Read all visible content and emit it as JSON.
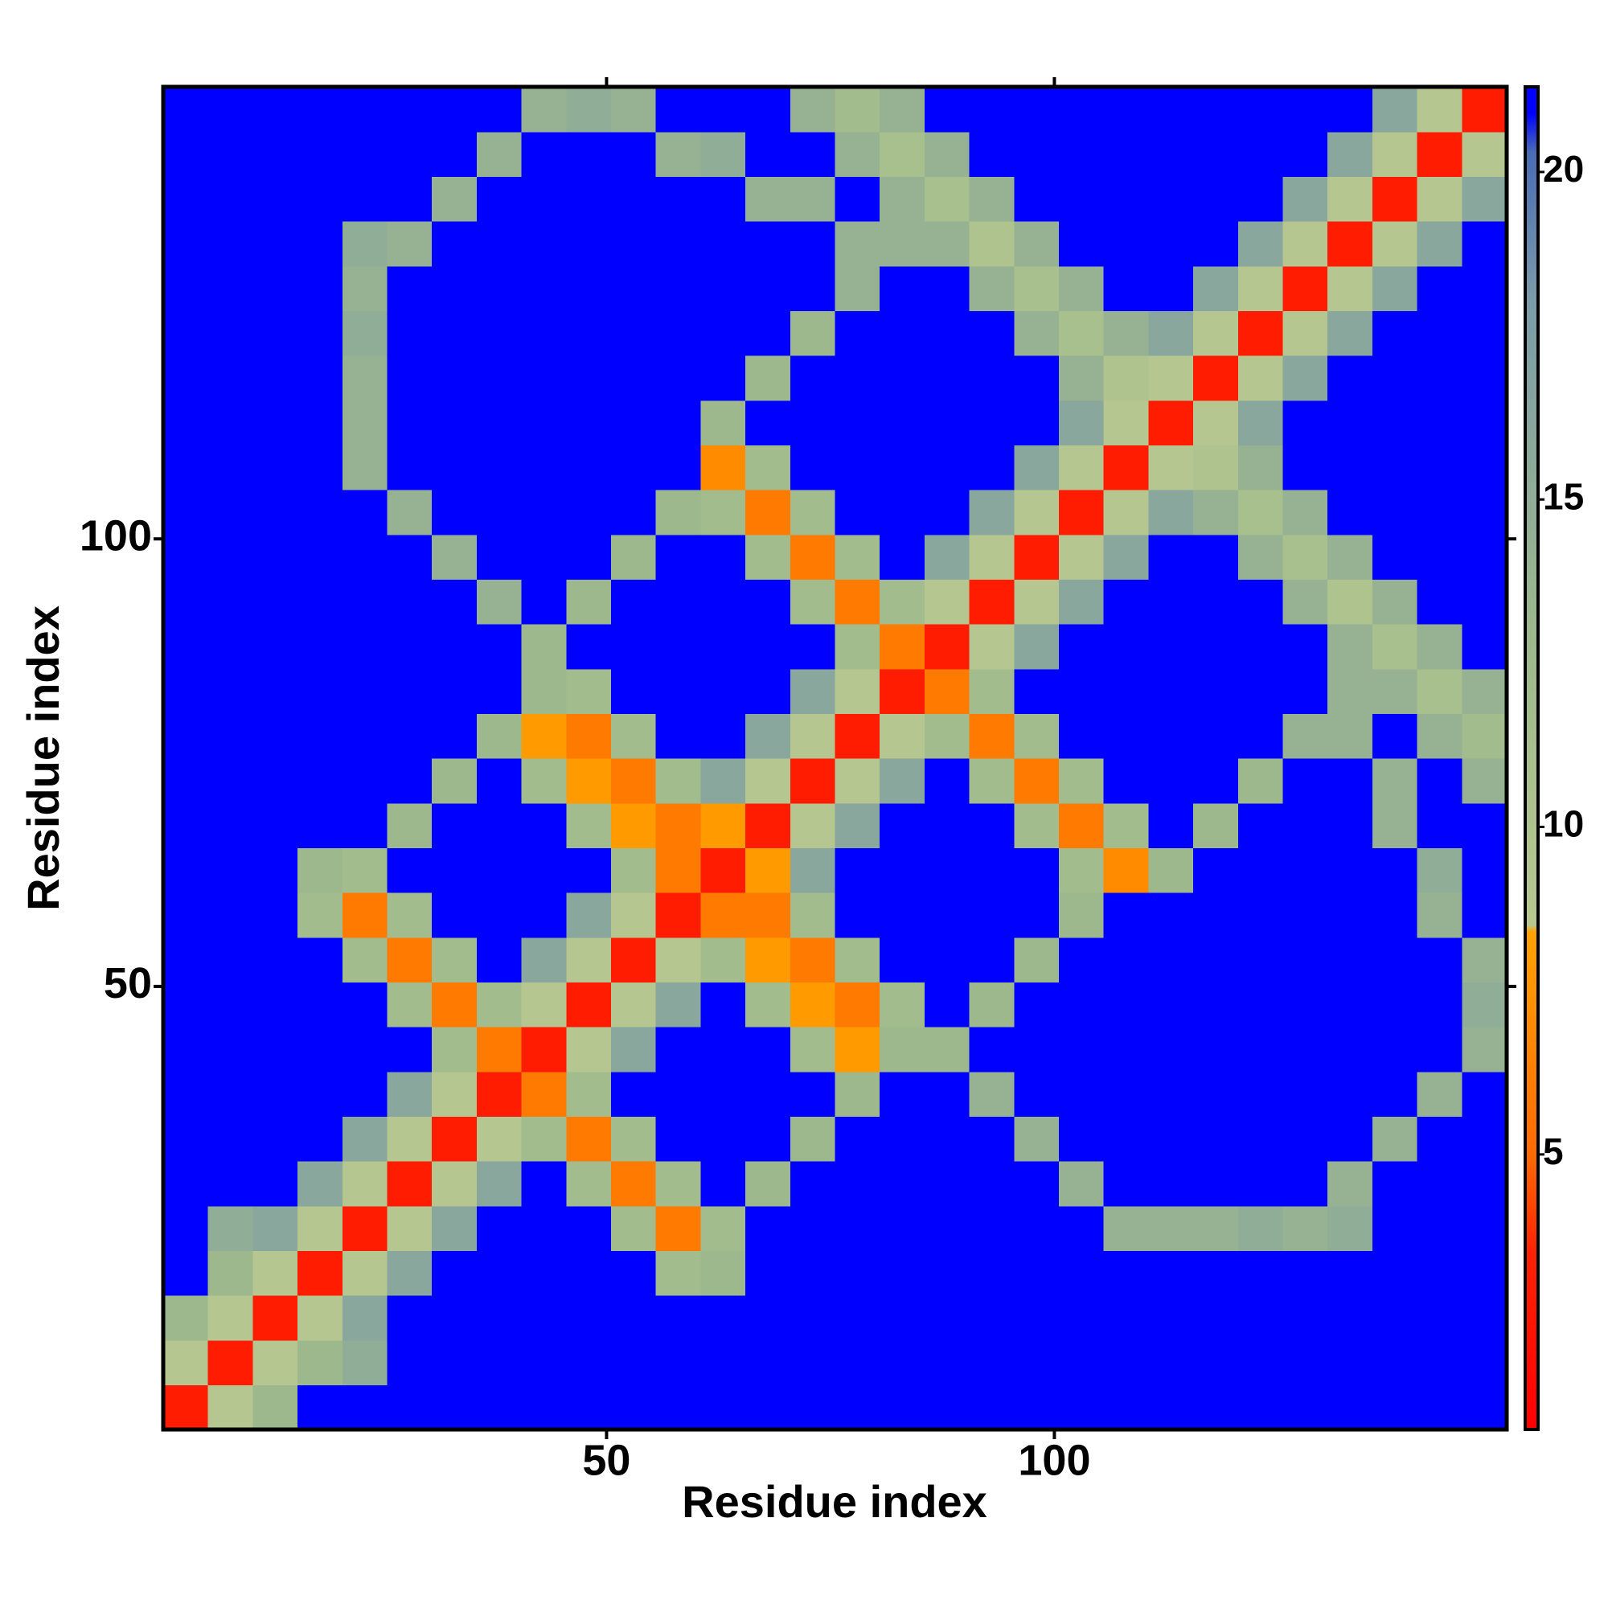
{
  "chart_data": {
    "type": "heatmap",
    "x_label": "Residue index",
    "y_label": "Residue index",
    "xlim": [
      0.5,
      150.5
    ],
    "ylim": [
      0.5,
      150.5
    ],
    "xticks": [
      50,
      100
    ],
    "yticks": [
      50,
      100
    ],
    "zlim": [
      0.8,
      21.3
    ],
    "colorbar_ticks": [
      5,
      10,
      15,
      20
    ],
    "colorscale": [
      [
        0.8,
        "#ff0000"
      ],
      [
        3.5,
        "#ff2200"
      ],
      [
        5,
        "#ff6a00"
      ],
      [
        8.4,
        "#ffa200"
      ],
      [
        8.5,
        "#b8c890"
      ],
      [
        13,
        "#9cb88c"
      ],
      [
        18,
        "#7c9ca8"
      ],
      [
        20.3,
        "#4a6cb4"
      ],
      [
        20.9,
        "#0000ff"
      ]
    ],
    "x": [
      3,
      8,
      13,
      18,
      23,
      28,
      33,
      38,
      43,
      48,
      53,
      58,
      63,
      68,
      73,
      78,
      83,
      88,
      93,
      98,
      103,
      108,
      113,
      118,
      123,
      128,
      133,
      138,
      143,
      148
    ],
    "y": [
      3,
      8,
      13,
      18,
      23,
      28,
      33,
      38,
      43,
      48,
      53,
      58,
      63,
      68,
      73,
      78,
      83,
      88,
      93,
      98,
      103,
      108,
      113,
      118,
      123,
      128,
      133,
      138,
      143,
      148
    ],
    "z": [
      [
        3,
        9,
        13,
        21,
        21,
        21,
        21,
        21,
        21,
        21,
        21,
        21,
        21,
        21,
        21,
        21,
        21,
        21,
        21,
        21,
        21,
        21,
        21,
        21,
        21,
        21,
        21,
        21,
        21,
        21
      ],
      [
        9,
        3,
        9,
        13,
        15,
        21,
        21,
        21,
        21,
        21,
        21,
        21,
        21,
        21,
        21,
        21,
        21,
        21,
        21,
        21,
        21,
        21,
        21,
        21,
        21,
        21,
        21,
        21,
        21,
        21
      ],
      [
        13,
        9,
        3,
        9,
        16,
        21,
        21,
        21,
        21,
        21,
        21,
        21,
        21,
        21,
        21,
        21,
        21,
        21,
        21,
        21,
        21,
        21,
        21,
        21,
        21,
        21,
        21,
        21,
        21,
        21
      ],
      [
        21,
        13,
        9,
        3,
        9,
        16,
        21,
        21,
        21,
        21,
        21,
        12,
        13,
        21,
        21,
        21,
        21,
        21,
        21,
        21,
        21,
        21,
        21,
        21,
        21,
        21,
        21,
        21,
        21,
        21
      ],
      [
        21,
        15,
        16,
        9,
        3,
        9,
        16,
        21,
        21,
        21,
        12,
        6,
        12,
        21,
        21,
        21,
        21,
        21,
        21,
        21,
        21,
        14,
        14,
        14,
        15,
        14,
        15,
        21,
        21,
        21
      ],
      [
        21,
        21,
        21,
        16,
        9,
        3,
        9,
        16,
        21,
        12,
        6,
        12,
        21,
        13,
        21,
        21,
        21,
        21,
        21,
        21,
        14,
        21,
        21,
        21,
        21,
        21,
        14,
        21,
        21,
        21
      ],
      [
        21,
        21,
        21,
        21,
        16,
        9,
        3,
        9,
        12,
        6,
        12,
        21,
        21,
        21,
        13,
        21,
        21,
        21,
        21,
        14,
        21,
        21,
        21,
        21,
        21,
        21,
        21,
        14,
        21,
        21
      ],
      [
        21,
        21,
        21,
        21,
        21,
        16,
        9,
        3,
        6,
        12,
        21,
        21,
        21,
        21,
        21,
        13,
        21,
        21,
        14,
        21,
        21,
        21,
        21,
        21,
        21,
        21,
        21,
        21,
        14,
        21
      ],
      [
        21,
        21,
        21,
        21,
        21,
        21,
        12,
        6,
        3,
        9,
        16,
        21,
        21,
        21,
        12,
        8,
        13,
        13,
        21,
        21,
        21,
        21,
        21,
        21,
        21,
        21,
        21,
        21,
        21,
        14
      ],
      [
        21,
        21,
        21,
        21,
        21,
        12,
        6,
        12,
        9,
        3,
        9,
        16,
        21,
        12,
        8,
        6,
        12,
        21,
        13,
        21,
        21,
        21,
        21,
        21,
        21,
        21,
        21,
        21,
        21,
        15
      ],
      [
        21,
        21,
        21,
        21,
        12,
        6,
        12,
        21,
        16,
        9,
        3,
        9,
        12,
        8,
        6,
        12,
        21,
        21,
        21,
        13,
        21,
        21,
        21,
        21,
        21,
        21,
        21,
        21,
        21,
        14
      ],
      [
        21,
        21,
        21,
        12,
        6,
        12,
        21,
        21,
        21,
        16,
        9,
        3,
        6,
        6,
        12,
        21,
        21,
        21,
        21,
        21,
        13,
        21,
        21,
        21,
        21,
        21,
        21,
        21,
        14,
        21
      ],
      [
        21,
        21,
        21,
        13,
        12,
        21,
        21,
        21,
        21,
        21,
        12,
        6,
        3,
        8,
        16,
        21,
        21,
        21,
        21,
        21,
        12,
        7,
        13,
        21,
        21,
        21,
        21,
        21,
        15,
        21
      ],
      [
        21,
        21,
        21,
        21,
        21,
        13,
        21,
        21,
        21,
        12,
        8,
        6,
        8,
        3,
        9,
        16,
        21,
        21,
        21,
        12,
        6,
        12,
        21,
        13,
        21,
        21,
        21,
        14,
        21,
        21
      ],
      [
        21,
        21,
        21,
        21,
        21,
        21,
        13,
        21,
        12,
        8,
        6,
        12,
        16,
        9,
        3,
        9,
        16,
        21,
        12,
        6,
        12,
        21,
        21,
        21,
        13,
        21,
        21,
        14,
        21,
        14
      ],
      [
        21,
        21,
        21,
        21,
        21,
        21,
        21,
        13,
        8,
        6,
        12,
        21,
        21,
        16,
        9,
        3,
        9,
        12,
        6,
        12,
        21,
        21,
        21,
        21,
        21,
        14,
        14,
        21,
        14,
        12
      ],
      [
        21,
        21,
        21,
        21,
        21,
        21,
        21,
        21,
        13,
        12,
        21,
        21,
        21,
        21,
        16,
        9,
        3,
        6,
        12,
        21,
        21,
        21,
        21,
        21,
        21,
        21,
        14,
        14,
        11,
        14
      ],
      [
        21,
        21,
        21,
        21,
        21,
        21,
        21,
        21,
        13,
        21,
        21,
        21,
        21,
        21,
        21,
        12,
        6,
        3,
        9,
        16,
        21,
        21,
        21,
        21,
        21,
        21,
        14,
        11,
        14,
        21
      ],
      [
        21,
        21,
        21,
        21,
        21,
        21,
        21,
        14,
        21,
        13,
        21,
        21,
        21,
        21,
        12,
        6,
        12,
        9,
        3,
        9,
        16,
        21,
        21,
        21,
        21,
        14,
        10,
        14,
        21,
        21
      ],
      [
        21,
        21,
        21,
        21,
        21,
        21,
        14,
        21,
        21,
        21,
        13,
        21,
        21,
        12,
        6,
        12,
        21,
        16,
        9,
        3,
        9,
        16,
        21,
        21,
        14,
        11,
        14,
        21,
        21,
        21
      ],
      [
        21,
        21,
        21,
        21,
        21,
        14,
        21,
        21,
        21,
        21,
        21,
        13,
        12,
        6,
        12,
        21,
        21,
        21,
        16,
        9,
        3,
        9,
        16,
        14,
        11,
        14,
        21,
        21,
        21,
        21
      ],
      [
        21,
        21,
        21,
        21,
        14,
        21,
        21,
        21,
        21,
        21,
        21,
        21,
        7,
        12,
        21,
        21,
        21,
        21,
        21,
        16,
        9,
        3,
        9,
        10,
        14,
        21,
        21,
        21,
        21,
        21
      ],
      [
        21,
        21,
        21,
        21,
        14,
        21,
        21,
        21,
        21,
        21,
        21,
        21,
        13,
        21,
        21,
        21,
        21,
        21,
        21,
        21,
        16,
        9,
        3,
        9,
        16,
        21,
        21,
        21,
        21,
        21
      ],
      [
        21,
        21,
        21,
        21,
        14,
        21,
        21,
        21,
        21,
        21,
        21,
        21,
        21,
        13,
        21,
        21,
        21,
        21,
        21,
        21,
        14,
        10,
        9,
        3,
        9,
        16,
        21,
        21,
        21,
        21
      ],
      [
        21,
        21,
        21,
        21,
        15,
        21,
        21,
        21,
        21,
        21,
        21,
        21,
        21,
        21,
        13,
        21,
        21,
        21,
        21,
        14,
        11,
        14,
        16,
        9,
        3,
        9,
        16,
        21,
        21,
        21
      ],
      [
        21,
        21,
        21,
        21,
        14,
        21,
        21,
        21,
        21,
        21,
        21,
        21,
        21,
        21,
        21,
        14,
        21,
        21,
        14,
        11,
        14,
        21,
        21,
        16,
        9,
        3,
        9,
        16,
        21,
        21
      ],
      [
        21,
        21,
        21,
        21,
        15,
        14,
        21,
        21,
        21,
        21,
        21,
        21,
        21,
        21,
        21,
        14,
        14,
        14,
        10,
        14,
        21,
        21,
        21,
        21,
        16,
        9,
        3,
        9,
        16,
        21
      ],
      [
        21,
        21,
        21,
        21,
        21,
        21,
        14,
        21,
        21,
        21,
        21,
        21,
        21,
        14,
        14,
        21,
        14,
        11,
        14,
        21,
        21,
        21,
        21,
        21,
        21,
        16,
        9,
        3,
        9,
        16
      ],
      [
        21,
        21,
        21,
        21,
        21,
        21,
        21,
        14,
        21,
        21,
        21,
        14,
        15,
        21,
        21,
        14,
        11,
        14,
        21,
        21,
        21,
        21,
        21,
        21,
        21,
        21,
        16,
        9,
        3,
        9
      ],
      [
        21,
        21,
        21,
        21,
        21,
        21,
        21,
        21,
        14,
        15,
        14,
        21,
        21,
        21,
        14,
        12,
        14,
        21,
        21,
        21,
        21,
        21,
        21,
        21,
        21,
        21,
        21,
        16,
        9,
        3
      ]
    ]
  }
}
